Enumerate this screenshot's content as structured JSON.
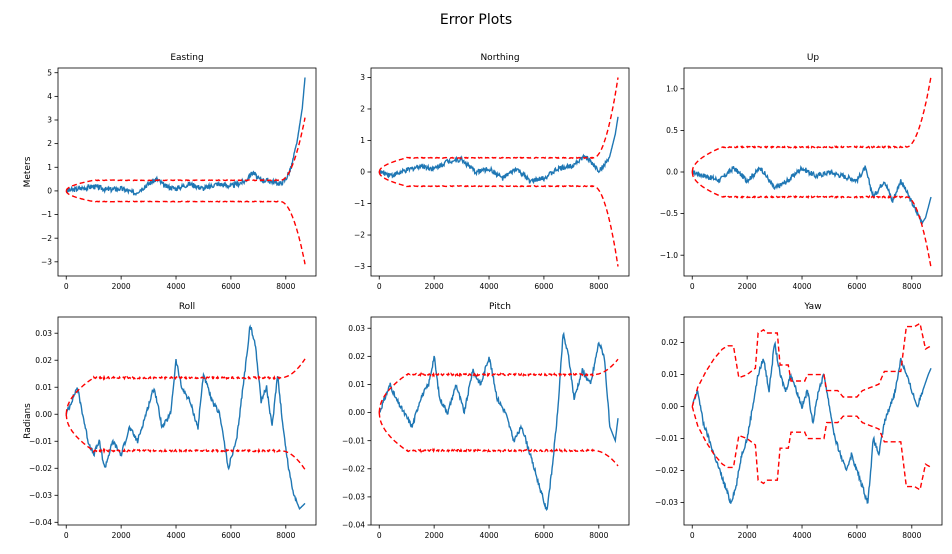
{
  "figure_title": "Error Plots",
  "colors": {
    "error": "#1f77b4",
    "bound": "#ff0000",
    "axes": "#000000",
    "background": "#ffffff"
  },
  "chart_data": [
    {
      "type": "line",
      "title": "Easting",
      "ylabel": "Meters",
      "xlim": [
        -300,
        9100
      ],
      "ylim": [
        -3.6,
        5.2
      ],
      "xticks": [
        0,
        2000,
        4000,
        6000,
        8000
      ],
      "yticks": [
        -3,
        -2,
        -1,
        0,
        1,
        2,
        3,
        4,
        5
      ],
      "bound_extent": 0.45,
      "bound_end": 3.1,
      "bound_rise": 1000,
      "series": [
        {
          "x": [
            0,
            500,
            1000,
            1500,
            2000,
            2500,
            3000,
            3300,
            3600,
            4000,
            4500,
            5000,
            5500,
            6000,
            6500,
            6800,
            7000,
            7500,
            7800,
            8000,
            8200,
            8400,
            8600,
            8700
          ],
          "y": [
            0,
            0.1,
            0.2,
            0.05,
            0.1,
            -0.1,
            0.3,
            0.5,
            0.2,
            0.1,
            0.3,
            0.1,
            0.3,
            0.2,
            0.4,
            0.8,
            0.5,
            0.4,
            0.3,
            0.5,
            1.0,
            2.0,
            3.5,
            4.8
          ]
        }
      ]
    },
    {
      "type": "line",
      "title": "Northing",
      "ylabel": "",
      "xlim": [
        -300,
        9100
      ],
      "ylim": [
        -3.3,
        3.3
      ],
      "xticks": [
        0,
        2000,
        4000,
        6000,
        8000
      ],
      "yticks": [
        -3,
        -2,
        -1,
        0,
        1,
        2,
        3
      ],
      "bound_extent": 0.45,
      "bound_end": 3.0,
      "bound_rise": 1000,
      "series": [
        {
          "x": [
            0,
            500,
            1000,
            1500,
            2000,
            2500,
            3000,
            3500,
            4000,
            4500,
            5000,
            5500,
            6000,
            6500,
            7000,
            7500,
            8000,
            8200,
            8400,
            8600,
            8700
          ],
          "y": [
            0,
            -0.1,
            0.05,
            0.2,
            0.1,
            0.35,
            0.4,
            0.0,
            0.1,
            -0.2,
            0.1,
            -0.3,
            -0.2,
            0.1,
            0.2,
            0.5,
            0.05,
            0.2,
            0.5,
            1.2,
            1.75
          ]
        }
      ]
    },
    {
      "type": "line",
      "title": "Up",
      "ylabel": "",
      "xlim": [
        -300,
        9100
      ],
      "ylim": [
        -1.25,
        1.25
      ],
      "xticks": [
        0,
        2000,
        4000,
        6000,
        8000
      ],
      "yticks": [
        -1.0,
        -0.5,
        0.0,
        0.5,
        1.0
      ],
      "bound_extent": 0.3,
      "bound_end": 1.15,
      "bound_rise": 1100,
      "series": [
        {
          "x": [
            0,
            500,
            1000,
            1500,
            2000,
            2500,
            3000,
            3500,
            4000,
            4500,
            5000,
            5500,
            6000,
            6300,
            6600,
            7000,
            7300,
            7600,
            7900,
            8200,
            8400,
            8500,
            8700
          ],
          "y": [
            0,
            -0.05,
            -0.1,
            0.05,
            -0.1,
            0.05,
            -0.2,
            -0.1,
            0.05,
            -0.05,
            0.0,
            -0.05,
            -0.1,
            0.05,
            -0.3,
            -0.1,
            -0.35,
            -0.1,
            -0.3,
            -0.5,
            -0.6,
            -0.55,
            -0.3
          ]
        }
      ]
    },
    {
      "type": "line",
      "title": "Roll",
      "ylabel": "Radians",
      "xlim": [
        -300,
        9100
      ],
      "ylim": [
        -0.041,
        0.036
      ],
      "xticks": [
        0,
        2000,
        4000,
        6000,
        8000
      ],
      "yticks": [
        -0.04,
        -0.03,
        -0.02,
        -0.01,
        0.0,
        0.01,
        0.02,
        0.03
      ],
      "bound_extent": 0.0135,
      "bound_end": 0.0205,
      "bound_rise": 1000,
      "series": [
        {
          "x": [
            0,
            200,
            400,
            600,
            800,
            1000,
            1200,
            1400,
            1700,
            2000,
            2300,
            2600,
            2900,
            3200,
            3500,
            3800,
            4000,
            4200,
            4500,
            4800,
            5000,
            5300,
            5600,
            5900,
            6200,
            6500,
            6700,
            6900,
            7100,
            7300,
            7500,
            7700,
            7900,
            8100,
            8300,
            8500,
            8700
          ],
          "y": [
            0,
            0.005,
            0.01,
            0.0,
            -0.01,
            -0.015,
            -0.01,
            -0.02,
            -0.01,
            -0.015,
            -0.005,
            -0.01,
            0.0,
            0.01,
            -0.005,
            0.0,
            0.02,
            0.01,
            0.005,
            -0.005,
            0.015,
            0.005,
            0.0,
            -0.02,
            -0.01,
            0.015,
            0.033,
            0.025,
            0.005,
            0.01,
            -0.005,
            0.015,
            -0.005,
            -0.02,
            -0.03,
            -0.035,
            -0.033
          ]
        }
      ]
    },
    {
      "type": "line",
      "title": "Pitch",
      "ylabel": "",
      "xlim": [
        -300,
        9100
      ],
      "ylim": [
        -0.04,
        0.034
      ],
      "xticks": [
        0,
        2000,
        4000,
        6000,
        8000
      ],
      "yticks": [
        -0.04,
        -0.03,
        -0.02,
        -0.01,
        0.0,
        0.01,
        0.02,
        0.03
      ],
      "bound_extent": 0.0135,
      "bound_end": 0.019,
      "bound_rise": 1000,
      "series": [
        {
          "x": [
            0,
            200,
            400,
            600,
            900,
            1200,
            1500,
            1800,
            2000,
            2200,
            2500,
            2800,
            3100,
            3400,
            3700,
            4000,
            4300,
            4600,
            4900,
            5200,
            5500,
            5800,
            6100,
            6300,
            6500,
            6700,
            6900,
            7100,
            7400,
            7700,
            8000,
            8200,
            8400,
            8600,
            8700
          ],
          "y": [
            0,
            0.005,
            0.01,
            0.005,
            0.0,
            -0.005,
            0.005,
            0.01,
            0.02,
            0.005,
            0.0,
            0.01,
            0.0,
            0.015,
            0.01,
            0.02,
            0.005,
            0.0,
            -0.01,
            -0.005,
            -0.015,
            -0.025,
            -0.035,
            -0.02,
            0.0,
            0.028,
            0.02,
            0.005,
            0.015,
            0.01,
            0.025,
            0.02,
            -0.005,
            -0.01,
            -0.002
          ]
        }
      ]
    },
    {
      "type": "line",
      "title": "Yaw",
      "ylabel": "",
      "xlim": [
        -300,
        9100
      ],
      "ylim": [
        -0.037,
        0.028
      ],
      "xticks": [
        0,
        2000,
        4000,
        6000,
        8000
      ],
      "yticks": [
        -0.03,
        -0.02,
        -0.01,
        0.0,
        0.01,
        0.02
      ],
      "bound_upper": {
        "x": [
          0,
          200,
          500,
          800,
          1100,
          1300,
          1500,
          1700,
          2000,
          2300,
          2400,
          2600,
          2700,
          3100,
          3200,
          3500,
          3600,
          4100,
          4200,
          4800,
          4900,
          5300,
          5500,
          6000,
          6200,
          6800,
          7000,
          7600,
          7800,
          8100,
          8300,
          8500,
          8700
        ],
        "y": [
          0,
          0.006,
          0.011,
          0.015,
          0.018,
          0.019,
          0.019,
          0.009,
          0.01,
          0.012,
          0.023,
          0.024,
          0.023,
          0.023,
          0.013,
          0.013,
          0.008,
          0.008,
          0.01,
          0.01,
          0.005,
          0.005,
          0.003,
          0.003,
          0.005,
          0.007,
          0.011,
          0.011,
          0.025,
          0.025,
          0.026,
          0.018,
          0.019
        ]
      },
      "bound_lower": {
        "x": [
          0,
          200,
          500,
          800,
          1100,
          1300,
          1500,
          1700,
          2000,
          2300,
          2400,
          2600,
          2700,
          3100,
          3200,
          3500,
          3600,
          4100,
          4200,
          4800,
          4900,
          5300,
          5500,
          6000,
          6200,
          6800,
          7000,
          7600,
          7800,
          8100,
          8300,
          8500,
          8700
        ],
        "y": [
          0,
          -0.006,
          -0.011,
          -0.015,
          -0.018,
          -0.019,
          -0.019,
          -0.009,
          -0.01,
          -0.012,
          -0.023,
          -0.024,
          -0.023,
          -0.023,
          -0.013,
          -0.013,
          -0.008,
          -0.008,
          -0.01,
          -0.01,
          -0.005,
          -0.005,
          -0.003,
          -0.003,
          -0.005,
          -0.007,
          -0.011,
          -0.011,
          -0.025,
          -0.025,
          -0.026,
          -0.018,
          -0.019
        ]
      },
      "series": [
        {
          "x": [
            0,
            200,
            400,
            600,
            800,
            1000,
            1200,
            1400,
            1600,
            1800,
            2000,
            2200,
            2400,
            2600,
            2800,
            3000,
            3200,
            3400,
            3600,
            3800,
            4000,
            4200,
            4400,
            4600,
            4800,
            5000,
            5200,
            5400,
            5600,
            5800,
            6000,
            6200,
            6400,
            6600,
            6800,
            7000,
            7200,
            7400,
            7600,
            7800,
            8000,
            8200,
            8400,
            8600,
            8700
          ],
          "y": [
            0,
            0.005,
            -0.005,
            -0.01,
            -0.015,
            -0.02,
            -0.025,
            -0.03,
            -0.025,
            -0.015,
            -0.01,
            0.0,
            0.01,
            0.015,
            0.005,
            0.02,
            0.01,
            0.005,
            0.01,
            0.005,
            0.0,
            0.005,
            -0.005,
            0.005,
            0.01,
            0.0,
            -0.01,
            -0.015,
            -0.02,
            -0.015,
            -0.02,
            -0.025,
            -0.03,
            -0.01,
            -0.015,
            -0.005,
            0.0,
            0.005,
            0.015,
            0.01,
            0.005,
            0.0,
            0.005,
            0.01,
            0.012
          ]
        }
      ]
    }
  ]
}
